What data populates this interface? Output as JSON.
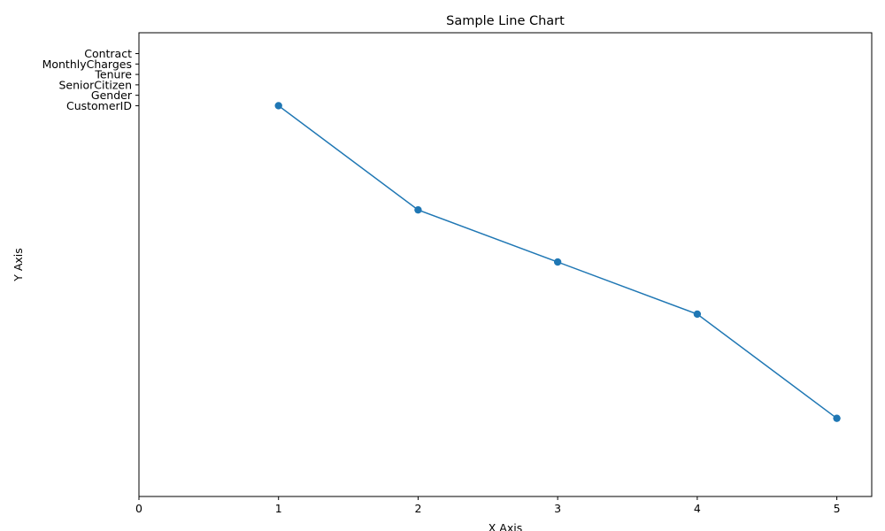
{
  "colors": {
    "line": "#1f77b4",
    "axes": "#000000",
    "background": "#ffffff"
  },
  "chart_data": {
    "type": "line",
    "title": "Sample Line Chart",
    "xlabel": "X Axis",
    "ylabel": "Y Axis",
    "x_ticks": [
      0,
      1,
      2,
      3,
      4,
      5
    ],
    "x_tick_labels": [
      "0",
      "1",
      "2",
      "3",
      "4",
      "5"
    ],
    "y_ticks": [
      -4,
      -3,
      -2,
      -1,
      0,
      1
    ],
    "y_tick_labels": [
      "CustomerID",
      "Gender",
      "SeniorCitizen",
      "Tenure",
      "MonthlyCharges",
      "Contract"
    ],
    "xlim": [
      0,
      5.25
    ],
    "ylim": [
      -41.5,
      3
    ],
    "grid": false,
    "series": [
      {
        "x": [
          1,
          2,
          3,
          4,
          5
        ],
        "y": [
          -4,
          -14,
          -19,
          -24,
          -34
        ],
        "marker": "circle"
      }
    ]
  }
}
